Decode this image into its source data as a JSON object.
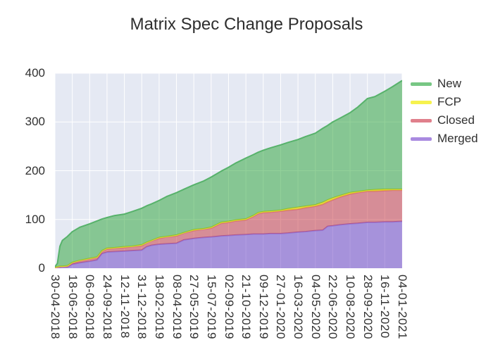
{
  "title": "Matrix Spec Change Proposals",
  "colors": {
    "page_background": "#FFFFFF",
    "plot_background": "#E5E9F3",
    "gridline": "#FFFFFF",
    "axis_text": "#303030",
    "title_text": "#2E2E2E"
  },
  "legend": {
    "items": [
      {
        "label": "New",
        "swatch_color": "#77C784"
      },
      {
        "label": "FCP",
        "swatch_color": "#F6F24E"
      },
      {
        "label": "Closed",
        "swatch_color": "#E0808C"
      },
      {
        "label": "Merged",
        "swatch_color": "#A98AE0"
      }
    ]
  },
  "chart_data": {
    "type": "area",
    "stacked": true,
    "title": "Matrix Spec Change Proposals",
    "xlabel": "",
    "ylabel": "",
    "ylim": [
      0,
      400
    ],
    "y_ticks": [
      0,
      100,
      200,
      300,
      400
    ],
    "grid": true,
    "legend_position": "right-top",
    "x_tick_labels": [
      "30-04-2018",
      "18-06-2018",
      "06-08-2018",
      "24-09-2018",
      "12-11-2018",
      "31-12-2018",
      "18-02-2019",
      "08-04-2019",
      "27-05-2019",
      "15-07-2019",
      "02-09-2019",
      "21-10-2019",
      "09-12-2019",
      "27-01-2020",
      "16-03-2020",
      "04-05-2020",
      "22-06-2020",
      "10-08-2020",
      "28-09-2020",
      "16-11-2020",
      "04-01-2021"
    ],
    "x_tick_weeks": [
      0,
      7,
      14,
      21,
      28,
      35,
      42,
      49,
      56,
      63,
      70,
      77,
      84,
      91,
      98,
      105,
      112,
      119,
      126,
      133,
      140
    ],
    "x_range_weeks": [
      0,
      140
    ],
    "sample_weeks": [
      0,
      1,
      2,
      3,
      5,
      7,
      10,
      14,
      17,
      19,
      21,
      24,
      28,
      31,
      35,
      37,
      39,
      42,
      45,
      49,
      52,
      56,
      60,
      63,
      65,
      67,
      70,
      73,
      77,
      80,
      82,
      84,
      87,
      91,
      94,
      98,
      101,
      105,
      108,
      110,
      112,
      115,
      119,
      122,
      126,
      129,
      133,
      136,
      140
    ],
    "stack_order_bottom_to_top": [
      "Merged",
      "Closed",
      "FCP",
      "New"
    ],
    "series": [
      {
        "name": "Merged",
        "fill": "rgba(104,60,196,0.5)",
        "stroke": "#9678D8",
        "values": [
          0,
          1,
          1,
          2,
          2,
          8,
          11,
          14,
          17,
          30,
          33,
          34,
          35,
          36,
          37,
          44,
          47,
          49,
          50,
          51,
          58,
          61,
          63,
          64,
          65,
          66,
          67,
          68,
          69,
          70,
          70,
          70,
          71,
          71,
          72,
          74,
          75,
          77,
          78,
          86,
          87,
          89,
          91,
          92,
          94,
          94,
          95,
          95,
          96
        ]
      },
      {
        "name": "Closed",
        "fill": "rgba(200,50,60,0.5)",
        "stroke": "#D4707E",
        "values": [
          1,
          1,
          2,
          1,
          2,
          3,
          4,
          5,
          5,
          5,
          6,
          7,
          7,
          8,
          9,
          8,
          9,
          12,
          14,
          15,
          14,
          16,
          17,
          18,
          22,
          26,
          27,
          29,
          30,
          36,
          42,
          44,
          44,
          46,
          47,
          47,
          49,
          50,
          53,
          50,
          53,
          57,
          61,
          63,
          64,
          64,
          64,
          65,
          64
        ]
      },
      {
        "name": "FCP",
        "fill": "rgba(234,214,0,0.65)",
        "stroke": "#E0D932",
        "values": [
          1,
          1,
          1,
          1,
          1,
          1,
          1,
          1,
          1,
          1,
          2,
          1,
          2,
          1,
          2,
          1,
          1,
          2,
          1,
          2,
          1,
          2,
          1,
          2,
          2,
          2,
          2,
          2,
          2,
          2,
          2,
          2,
          2,
          2,
          3,
          4,
          3,
          3,
          4,
          4,
          4,
          3,
          3,
          2,
          2,
          3,
          3,
          2,
          2
        ]
      },
      {
        "name": "New",
        "fill": "rgba(40,164,52,0.5)",
        "stroke": "#57B26B",
        "values": [
          1,
          7,
          41,
          53,
          60,
          63,
          68,
          71,
          74,
          65,
          63,
          66,
          67,
          71,
          75,
          75,
          75,
          76,
          82,
          87,
          89,
          92,
          98,
          103,
          104,
          105,
          111,
          117,
          125,
          125,
          124,
          126,
          130,
          134,
          136,
          139,
          143,
          147,
          152,
          153,
          156,
          159,
          164,
          173,
          188,
          191,
          201,
          210,
          223
        ]
      }
    ]
  }
}
